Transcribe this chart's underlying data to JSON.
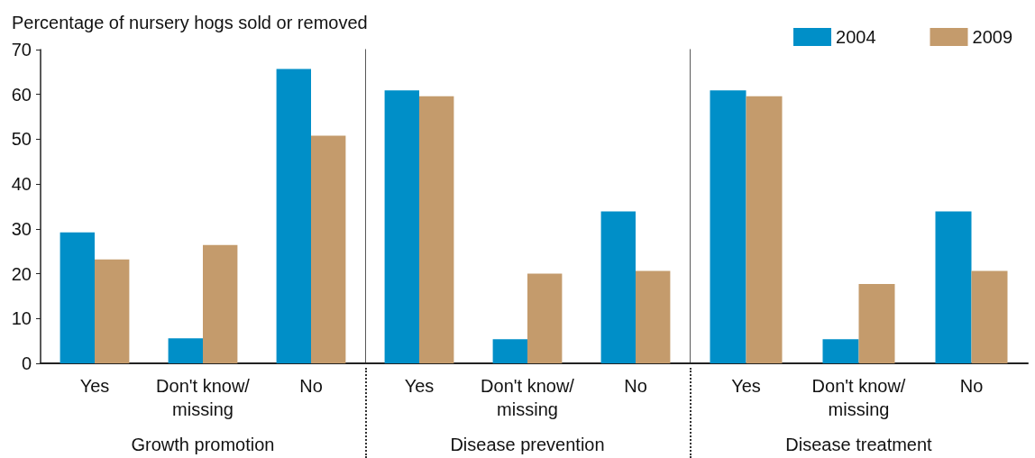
{
  "chart_data": [
    {
      "type": "bar",
      "ylabel": "Percentage of nursery hogs sold or removed",
      "xlabel": "Growth promotion",
      "categories": [
        "Yes",
        "Don't know/\nmissing",
        "No"
      ],
      "ylim": [
        0,
        70
      ],
      "yticks": [
        0,
        10,
        20,
        30,
        40,
        50,
        60,
        70
      ],
      "grid": false,
      "legend": false,
      "series": [
        {
          "color": "#008fc8",
          "values": [
            29.2,
            5.6,
            65.7
          ]
        },
        {
          "color": "#c49b6c",
          "values": [
            23.2,
            26.4,
            50.8
          ]
        }
      ]
    },
    {
      "type": "bar",
      "xlabel": "Disease prevention",
      "categories": [
        "Yes",
        "Don't know/\nmissing",
        "No"
      ],
      "ylim": [
        0,
        70
      ],
      "tick_labels": "x",
      "grid": false,
      "legend": false,
      "series": [
        {
          "color": "#008fc8",
          "values": [
            60.9,
            5.4,
            33.9
          ]
        },
        {
          "color": "#c49b6c",
          "values": [
            59.6,
            20.0,
            20.6
          ]
        }
      ]
    },
    {
      "type": "bar",
      "xlabel": "Disease treatment",
      "categories": [
        "Yes",
        "Don't know/\nmissing",
        "No"
      ],
      "ylim": [
        0,
        70
      ],
      "tick_labels": "x",
      "grid": false,
      "legend": "top right",
      "series": [
        {
          "name": "2004",
          "color": "#008fc8",
          "values": [
            60.9,
            5.4,
            33.9
          ]
        },
        {
          "name": "2009",
          "color": "#c49b6c",
          "values": [
            59.6,
            17.7,
            20.6
          ]
        }
      ]
    }
  ]
}
